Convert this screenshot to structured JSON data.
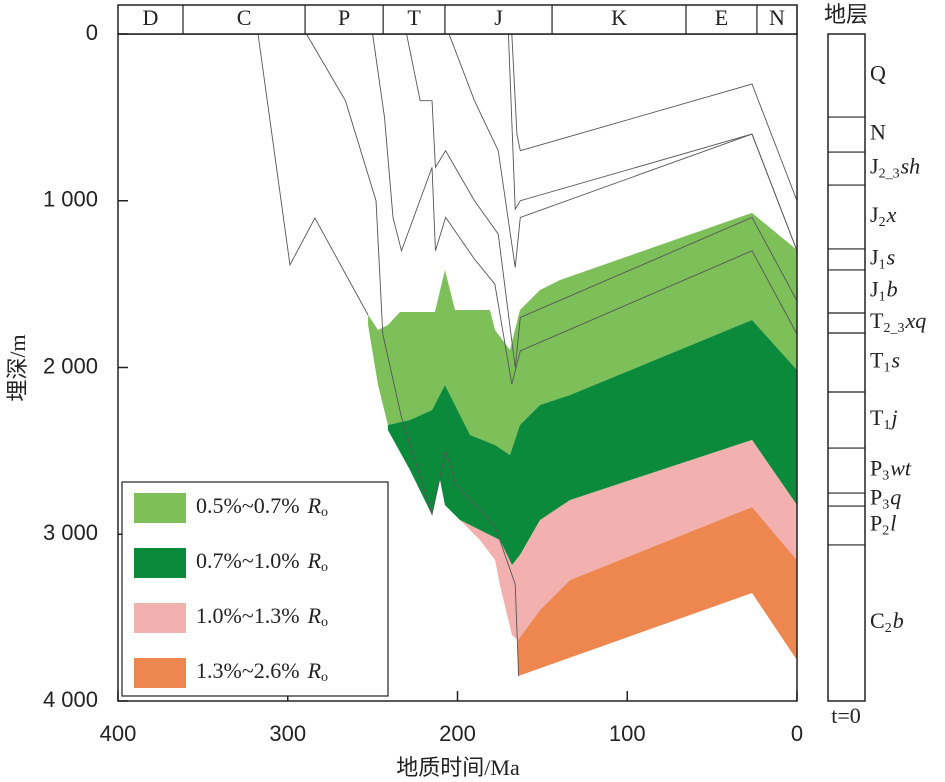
{
  "chart_data": {
    "type": "burial-history",
    "x_label": "地质时间/Ma",
    "y_label": "埋深/m",
    "xlim": [
      400,
      0
    ],
    "ylim": [
      0,
      4000
    ],
    "xticks": [
      400,
      300,
      200,
      100,
      0
    ],
    "yticks": [
      0,
      {
        "value": 1000,
        "label": "1 000"
      },
      {
        "value": 2000,
        "label": "2 000"
      },
      {
        "value": 3000,
        "label": "3 000"
      },
      {
        "value": 4000,
        "label": "4 000"
      }
    ],
    "periods": [
      {
        "name": "D",
        "start": 400,
        "end": 361.7
      },
      {
        "name": "C",
        "start": 361.7,
        "end": 289.8
      },
      {
        "name": "P",
        "start": 289.8,
        "end": 243.8
      },
      {
        "name": "T",
        "start": 243.8,
        "end": 207.4
      },
      {
        "name": "J",
        "start": 207.4,
        "end": 144.3
      },
      {
        "name": "K",
        "start": 144.3,
        "end": 65.4
      },
      {
        "name": "E",
        "start": 65.4,
        "end": 23.6
      },
      {
        "name": "N",
        "start": 23.6,
        "end": 0
      }
    ],
    "zones": [
      {
        "name": "0.5%~0.7%",
        "symbol": "R",
        "symbol_sub": "o",
        "color": "#7dc05a",
        "x": [
          252.7,
          246.8,
          241,
          233.9,
          213.3,
          207.4,
          201.5,
          180.9,
          177.9,
          169.1,
          163.2,
          151.4,
          139.6,
          26.5,
          0,
          0,
          26.5,
          133.7,
          151.4,
          163.2,
          169.1,
          177.9,
          192.6,
          201.5,
          207.4,
          215,
          228,
          241,
          246.8,
          252.7
        ],
        "y": [
          1685,
          1775,
          1745,
          1667,
          1667,
          1415,
          1655,
          1655,
          1775,
          1895,
          1655,
          1535,
          1475,
          1073,
          1295,
          2015,
          1715,
          2165,
          2225,
          2345,
          2525,
          2465,
          2405,
          2225,
          2105,
          2255,
          2315,
          2345,
          2105,
          1745
        ]
      },
      {
        "name": "0.7%~1.0%",
        "symbol": "R",
        "symbol_sub": "o",
        "color": "#0b8a3c",
        "x": [
          241,
          228,
          215,
          207.4,
          201.5,
          192.6,
          177.9,
          169.1,
          163.2,
          151.4,
          133.7,
          26.5,
          0,
          0,
          26.5,
          133.7,
          151.4,
          163.2,
          167.9,
          175,
          198.5,
          207.4,
          210.3,
          215,
          228,
          241
        ],
        "y": [
          2345,
          2315,
          2255,
          2105,
          2225,
          2405,
          2465,
          2525,
          2345,
          2225,
          2165,
          1715,
          2015,
          2825,
          2435,
          2795,
          2915,
          3125,
          3185,
          3035,
          2915,
          2825,
          2675,
          2885,
          2615,
          2375
        ]
      },
      {
        "name": "1.0%~1.3%",
        "symbol": "R",
        "symbol_sub": "o",
        "color": "#f2b0ae",
        "x": [
          198.5,
          175,
          167.9,
          163.2,
          151.4,
          133.7,
          26.5,
          0,
          0,
          26.5,
          133.7,
          151.4,
          164.4,
          167.9,
          175,
          177.9,
          186.7
        ],
        "y": [
          2915,
          3035,
          3185,
          3125,
          2915,
          2795,
          2435,
          2825,
          3155,
          2837,
          3275,
          3455,
          3635,
          3605,
          3305,
          3155,
          3035
        ]
      },
      {
        "name": "1.3%~2.6%",
        "symbol": "R",
        "symbol_sub": "o",
        "color": "#ee8650",
        "x": [
          164.4,
          151.4,
          133.7,
          26.5,
          0,
          0,
          26.5,
          164.4
        ],
        "y": [
          3635,
          3455,
          3275,
          2837,
          3155,
          3755,
          3352,
          3851
        ]
      }
    ],
    "burial_lines": [
      {
        "x": [
          317.5,
          298.7,
          284,
          252.7
        ],
        "y": [
          0,
          1385,
          1104,
          1685
        ]
      },
      {
        "x": [
          289,
          266,
          248,
          244,
          233,
          215,
          207,
          201,
          178,
          166,
          164
        ],
        "y": [
          0,
          400,
          1000,
          1800,
          2300,
          2880,
          2500,
          2700,
          2950,
          3300,
          3850
        ]
      },
      {
        "x": [
          250,
          243,
          238,
          233,
          215,
          213,
          207,
          190,
          178,
          168,
          163,
          26.5,
          0
        ],
        "y": [
          0,
          500,
          1100,
          1300,
          800,
          1300,
          1100,
          1350,
          1500,
          2100,
          1900,
          1300,
          1800
        ]
      },
      {
        "x": [
          230,
          222,
          215,
          213,
          207,
          190,
          176,
          166,
          163,
          26.5,
          0
        ],
        "y": [
          0,
          400,
          400,
          800,
          700,
          1000,
          1200,
          2000,
          1700,
          1100,
          1600
        ]
      },
      {
        "x": [
          205,
          190,
          176,
          166,
          163,
          26.5,
          0
        ],
        "y": [
          0,
          400,
          700,
          1400,
          1100,
          600,
          1300
        ]
      },
      {
        "x": [
          170,
          166,
          163,
          26.5,
          0
        ],
        "y": [
          0,
          1050,
          1000,
          600,
          1300
        ]
      },
      {
        "x": [
          168,
          165,
          163,
          26.5,
          0
        ],
        "y": [
          0,
          600,
          700,
          300,
          1000
        ]
      }
    ],
    "strata_title": "地层",
    "strata_time": "t=0",
    "strata": [
      {
        "main": "Q",
        "top": 0,
        "bottom": 498
      },
      {
        "main": "N",
        "top": 498,
        "bottom": 708
      },
      {
        "main": "J",
        "sub": "2_3",
        "suffix": "sh",
        "top": 708,
        "bottom": 906
      },
      {
        "main": "J",
        "sub": "2",
        "suffix": "x",
        "top": 906,
        "bottom": 1289
      },
      {
        "main": "J",
        "sub": "1",
        "suffix": "s",
        "top": 1289,
        "bottom": 1415
      },
      {
        "main": "J",
        "sub": "1",
        "suffix": "b",
        "top": 1415,
        "bottom": 1673
      },
      {
        "main": "T",
        "sub": "2_3",
        "suffix": "xq",
        "top": 1673,
        "bottom": 1793
      },
      {
        "main": "T",
        "sub": "1",
        "suffix": "s",
        "top": 1793,
        "bottom": 2147
      },
      {
        "main": "T",
        "sub": "1",
        "suffix": "j",
        "top": 2147,
        "bottom": 2483
      },
      {
        "main": "P",
        "sub": "3",
        "suffix": "wt",
        "top": 2483,
        "bottom": 2753
      },
      {
        "main": "P",
        "sub": "3",
        "suffix": "q",
        "top": 2753,
        "bottom": 2831
      },
      {
        "main": "P",
        "sub": "2",
        "suffix": "l",
        "top": 2831,
        "bottom": 3064
      },
      {
        "main": "C",
        "sub": "2",
        "suffix": "b",
        "top": 3064,
        "bottom": 4000
      }
    ]
  }
}
